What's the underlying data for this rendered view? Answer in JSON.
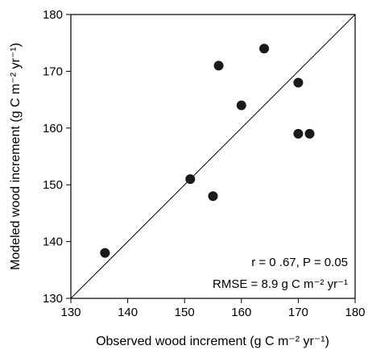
{
  "chart_data": {
    "type": "scatter",
    "xlabel": "Observed wood increment (g C m⁻² yr⁻¹)",
    "ylabel": "Modeled wood increment (g C m⁻² yr⁻¹)",
    "xlim": [
      130,
      180
    ],
    "ylim": [
      130,
      180
    ],
    "x_ticks": [
      "130",
      "140",
      "150",
      "160",
      "170",
      "180"
    ],
    "y_ticks": [
      "130",
      "140",
      "150",
      "160",
      "170",
      "180"
    ],
    "grid": false,
    "one_to_one_line": true,
    "points": [
      {
        "x": 136,
        "y": 138
      },
      {
        "x": 151,
        "y": 151
      },
      {
        "x": 155,
        "y": 148
      },
      {
        "x": 156,
        "y": 171
      },
      {
        "x": 160,
        "y": 164
      },
      {
        "x": 164,
        "y": 174
      },
      {
        "x": 170,
        "y": 168
      },
      {
        "x": 170,
        "y": 159
      },
      {
        "x": 172,
        "y": 159
      }
    ],
    "annotations": [
      "r = 0 .67, P = 0.05",
      "RMSE = 8.9 g C m⁻² yr⁻¹"
    ],
    "colors": {
      "marker": "#1a1a1a",
      "line": "#000000"
    }
  }
}
